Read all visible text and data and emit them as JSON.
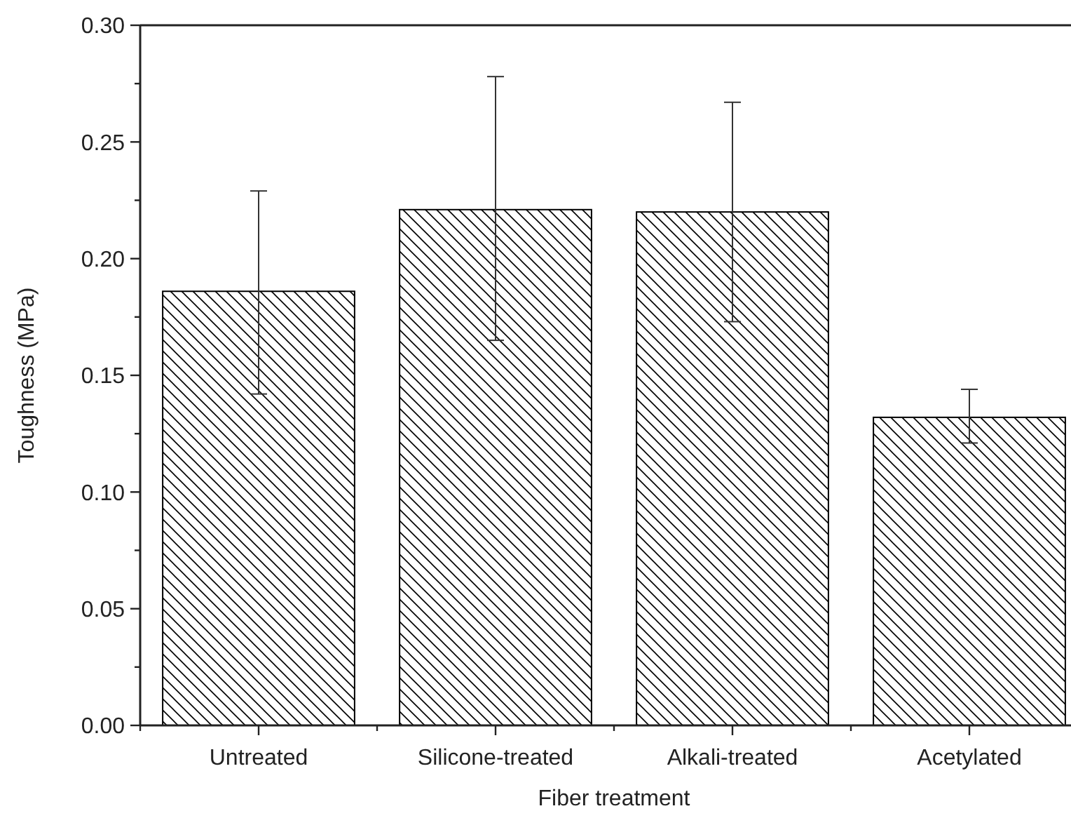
{
  "chart_data": {
    "type": "bar",
    "xlabel": "Fiber treatment",
    "ylabel": "Toughness (MPa)",
    "categories": [
      "Untreated",
      "Silicone-treated",
      "Alkali-treated",
      "Acetylated"
    ],
    "values": [
      0.186,
      0.221,
      0.22,
      0.132
    ],
    "errors": [
      [
        0.142,
        0.229
      ],
      [
        0.165,
        0.278
      ],
      [
        0.173,
        0.267
      ],
      [
        0.121,
        0.144
      ]
    ],
    "color": "#000000",
    "ylim": [
      0,
      0.3
    ],
    "yticks": [
      {
        "value": 0,
        "label": "0.00"
      },
      {
        "value": 0.025,
        "label": null
      },
      {
        "value": 0.05,
        "label": "0.05"
      },
      {
        "value": 0.075,
        "label": null
      },
      {
        "value": 0.1,
        "label": "0.10"
      },
      {
        "value": 0.125,
        "label": null
      },
      {
        "value": 0.15,
        "label": "0.15"
      },
      {
        "value": 0.175,
        "label": null
      },
      {
        "value": 0.2,
        "label": "0.20"
      },
      {
        "value": 0.225,
        "label": null
      },
      {
        "value": 0.25,
        "label": "0.25"
      },
      {
        "value": 0.275,
        "label": null
      },
      {
        "value": 0.3,
        "label": "0.30"
      }
    ],
    "grid": false
  }
}
